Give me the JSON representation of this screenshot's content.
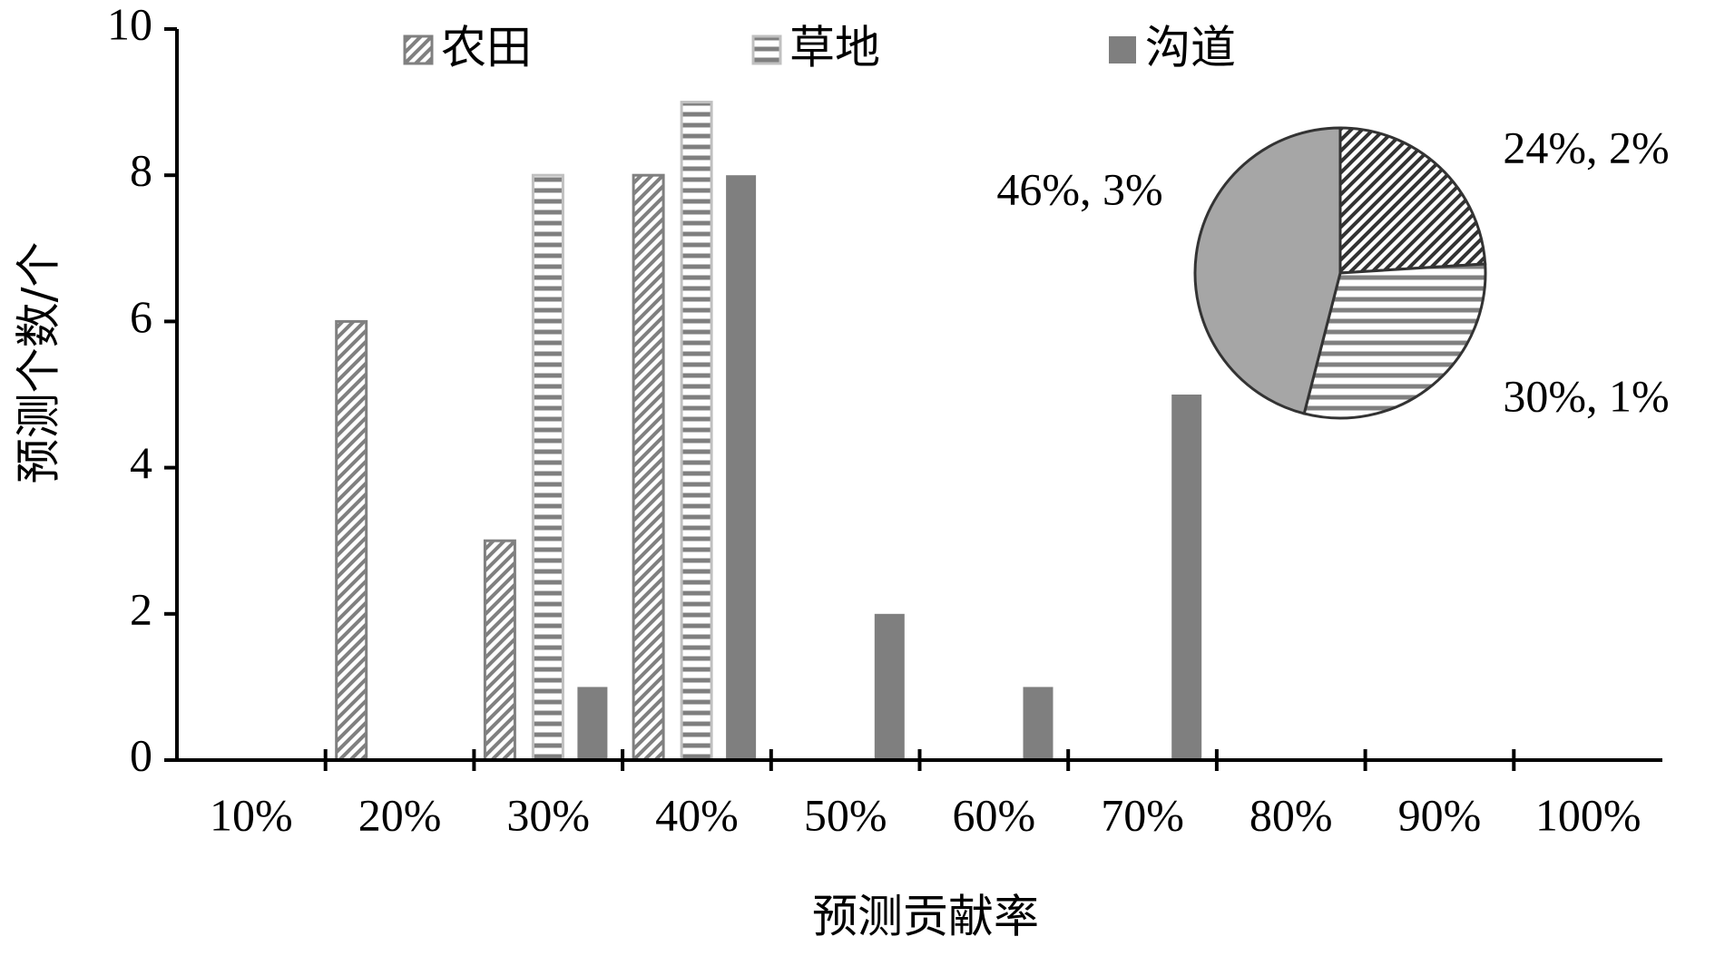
{
  "chart_data": [
    {
      "type": "bar",
      "xlabel": "预测贡献率",
      "ylabel": "预测个数/个",
      "categories": [
        "10%",
        "20%",
        "30%",
        "40%",
        "50%",
        "60%",
        "70%",
        "80%",
        "90%",
        "100%"
      ],
      "series": [
        {
          "name": "农田",
          "color": "#808080",
          "values": [
            0,
            6,
            3,
            8,
            0,
            0,
            0,
            0,
            0,
            0
          ]
        },
        {
          "name": "草地",
          "color": "#7f7f7f",
          "values": [
            0,
            0,
            8,
            9,
            0,
            0,
            0,
            0,
            0,
            0
          ]
        },
        {
          "name": "沟道",
          "color": "#7f7f7f",
          "values": [
            0,
            0,
            1,
            8,
            2,
            1,
            5,
            0,
            0,
            0
          ]
        }
      ],
      "ylim": [
        0,
        10
      ],
      "yticks": [
        0,
        2,
        4,
        6,
        8,
        10
      ],
      "legend": "top"
    },
    {
      "type": "pie",
      "values": [
        24,
        30,
        46
      ],
      "value_labels": [
        "24%, 2%",
        "30%, 1%",
        "46%, 3%"
      ],
      "colors": [
        "#333333",
        "#808080",
        "#a6a6a6"
      ]
    }
  ]
}
